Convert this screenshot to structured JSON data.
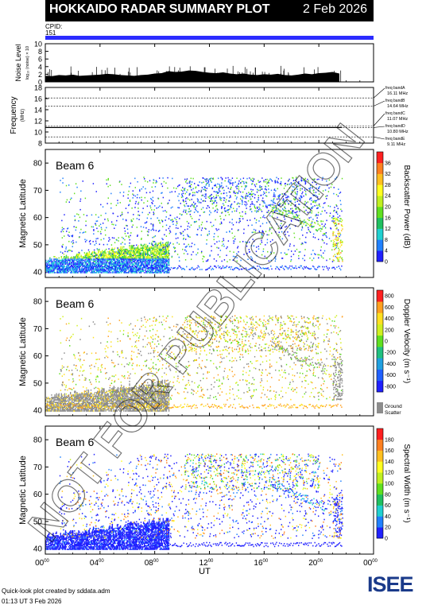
{
  "header": {
    "title": "HOKKAIDO RADAR SUMMARY PLOT",
    "date": "2 Feb 2026",
    "cpid_label": "CPID:",
    "cpid_value": "151"
  },
  "colors": {
    "header_bg": "#000000",
    "cpid_bar": "#2b2bff",
    "ground_scatter": "#8c8c8c"
  },
  "chart_data": [
    {
      "type": "area",
      "name": "noise",
      "ylabel": "Noise Level",
      "ylabel_sub": "log₁₀ (noise) × 10",
      "ylim": [
        0,
        10
      ],
      "yticks": [
        "0",
        "2",
        "4",
        "6",
        "8",
        "10"
      ],
      "x_hours": [
        0,
        0.5,
        1,
        1.5,
        2,
        2.5,
        3,
        3.5,
        4,
        4.5,
        5,
        5.5,
        6,
        6.5,
        7,
        7.5,
        8,
        8.5,
        9,
        9.5,
        10,
        10.5,
        11,
        11.5,
        12,
        12.5,
        13,
        13.5,
        14,
        14.5,
        15,
        15.5,
        16,
        16.5,
        17,
        17.5,
        18,
        18.5,
        19,
        19.5,
        20,
        20.5,
        21,
        21.5
      ],
      "values": [
        1.6,
        1.5,
        1.8,
        1.7,
        1.9,
        1.6,
        1.7,
        1.8,
        1.9,
        2.1,
        2.0,
        1.8,
        1.7,
        1.6,
        1.8,
        1.9,
        2.2,
        2.3,
        2.8,
        2.6,
        2.7,
        3.0,
        2.9,
        2.6,
        2.4,
        2.3,
        2.5,
        2.2,
        2.0,
        2.2,
        1.9,
        1.8,
        2.0,
        1.9,
        2.1,
        1.8,
        1.7,
        1.9,
        2.2,
        2.0,
        2.3,
        2.4,
        2.6,
        2.2
      ]
    },
    {
      "type": "line",
      "name": "frequency",
      "ylabel": "Frequency",
      "ylabel_sub": "(MHz)",
      "ylim": [
        8,
        18
      ],
      "yticks": [
        "8",
        "10",
        "12",
        "14",
        "16",
        "18"
      ],
      "bands": [
        {
          "label": "freq bandA",
          "value": "16.11 MHz",
          "mhz": 16.11
        },
        {
          "label": "freq bandB",
          "value": "14.64 MHz",
          "mhz": 14.64
        },
        {
          "label": "freq bandC",
          "value": "11.07 MHz",
          "mhz": 11.07
        },
        {
          "label": "freq bandD",
          "value": "10.80 MHz",
          "mhz": 10.8
        },
        {
          "label": "freq bandE",
          "value": "9.11 MHz",
          "mhz": 9.11
        }
      ]
    },
    {
      "type": "heatmap",
      "name": "power",
      "beam_label": "Beam  6",
      "ylabel": "Magnetic Latitude",
      "ylim": [
        38,
        85
      ],
      "yticks": [
        "40",
        "50",
        "60",
        "70",
        "80"
      ],
      "colorbar_label": "Backscatter Power (dB)",
      "colorbar_ticks": [
        "0",
        "4",
        "8",
        "12",
        "16",
        "20",
        "24",
        "28",
        "32",
        "36"
      ],
      "colorbar_colors": [
        "#2020ff",
        "#2080ff",
        "#20d0d0",
        "#20c060",
        "#60e020",
        "#c0f020",
        "#ffff20",
        "#ffc020",
        "#ff8020",
        "#ff2020"
      ],
      "ground_label": ""
    },
    {
      "type": "heatmap",
      "name": "velocity",
      "beam_label": "Beam  6",
      "ylabel": "Magnetic Latitude",
      "ylim": [
        38,
        85
      ],
      "yticks": [
        "40",
        "50",
        "60",
        "70",
        "80"
      ],
      "colorbar_label": "Doppler Velocity (m s⁻¹)",
      "colorbar_ticks": [
        "800",
        "600",
        "400",
        "200",
        "0",
        "-200",
        "-400",
        "-600",
        "-800"
      ],
      "colorbar_colors": [
        "#2020ff",
        "#2060ff",
        "#20a0e0",
        "#20c080",
        "#60e020",
        "#d0f020",
        "#ffe020",
        "#ffa020",
        "#ff2020"
      ],
      "ground_label": "Ground Scatter"
    },
    {
      "type": "heatmap",
      "name": "width",
      "beam_label": "Beam  6",
      "ylabel": "Magnetic Latitude",
      "ylim": [
        38,
        85
      ],
      "yticks": [
        "40",
        "50",
        "60",
        "70",
        "80"
      ],
      "colorbar_label": "Spectral Width (m s⁻¹)",
      "colorbar_ticks": [
        "0",
        "20",
        "40",
        "60",
        "80",
        "100",
        "120",
        "140",
        "160",
        "180"
      ],
      "colorbar_colors": [
        "#2020ff",
        "#2080ff",
        "#20d0d0",
        "#20c060",
        "#60e020",
        "#c0f020",
        "#ffff20",
        "#ffc020",
        "#ff8020",
        "#ff2020"
      ],
      "ground_label": ""
    }
  ],
  "time_axis": {
    "label": "UT",
    "ticks": [
      {
        "h": "00",
        "m": "00"
      },
      {
        "h": "04",
        "m": "00"
      },
      {
        "h": "08",
        "m": "00"
      },
      {
        "h": "12",
        "m": "00"
      },
      {
        "h": "16",
        "m": "00"
      },
      {
        "h": "20",
        "m": "00"
      },
      {
        "h": "00",
        "m": "00"
      }
    ]
  },
  "watermark": "NOT FOR PUBLICATION",
  "footer": {
    "credit": "Quick-look plot created by sddata.adm",
    "timestamp": "01:13 UT 3 Feb 2026",
    "logo": "ISEE"
  }
}
